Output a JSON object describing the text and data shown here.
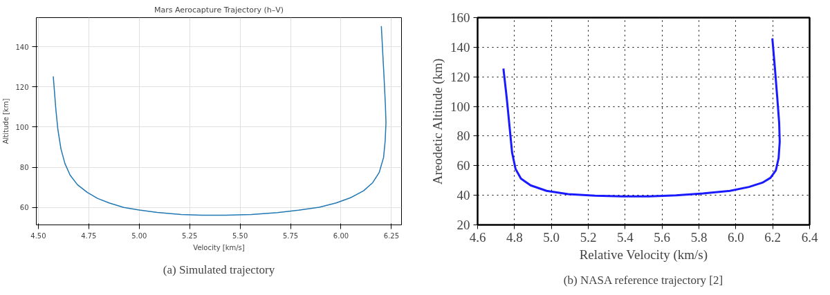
{
  "chart_data": [
    {
      "type": "line",
      "title": "Mars Aerocapture Trajectory (h–V)",
      "xlabel": "Velocity [km/s]",
      "ylabel": "Altitude [km]",
      "annotations": [
        "(a) Simulated trajectory"
      ],
      "xlim": [
        4.49,
        6.3
      ],
      "ylim": [
        51.3,
        154.5
      ],
      "xticks": [
        {
          "value": 4.5,
          "label": "4.50"
        },
        {
          "value": 4.75,
          "label": "4.75"
        },
        {
          "value": 5.0,
          "label": "5.00"
        },
        {
          "value": 5.25,
          "label": "5.25"
        },
        {
          "value": 5.5,
          "label": "5.50"
        },
        {
          "value": 5.75,
          "label": "5.75"
        },
        {
          "value": 6.0,
          "label": "6.00"
        },
        {
          "value": 6.25,
          "label": "6.25"
        }
      ],
      "yticks": [
        60,
        80,
        100,
        120,
        140
      ],
      "grid": true,
      "line_style": "solid",
      "marker": "none",
      "series": [
        {
          "color": "#1f77b4",
          "x": [
            4.574,
            4.587,
            4.597,
            4.612,
            4.632,
            4.658,
            4.694,
            4.742,
            4.793,
            4.851,
            4.923,
            5.0,
            5.09,
            5.207,
            5.31,
            5.427,
            5.556,
            5.685,
            5.789,
            5.892,
            5.976,
            6.047,
            6.112,
            6.157,
            6.189,
            6.211,
            6.219,
            6.223,
            6.22,
            6.213,
            6.2
          ],
          "values": [
            125.2,
            108.7,
            98.7,
            89.2,
            81.8,
            76.0,
            71.3,
            67.5,
            64.5,
            62.2,
            60.0,
            58.7,
            57.5,
            56.5,
            56.1,
            56.1,
            56.5,
            57.4,
            58.6,
            60.1,
            62.2,
            64.8,
            68.3,
            72.3,
            77.3,
            84.8,
            93.1,
            102.2,
            111.3,
            125.6,
            150.3
          ]
        }
      ]
    },
    {
      "type": "line",
      "xlabel": "Relative Velocity (km/s)",
      "ylabel": "Areodetic Altitude (km)",
      "annotations": [
        "(b) NASA reference trajectory [2]"
      ],
      "xlim": [
        4.6,
        6.4
      ],
      "ylim": [
        20,
        160
      ],
      "xticks": [
        4.6,
        4.8,
        {
          "value": 5.0,
          "label": "5.0"
        },
        5.2,
        5.4,
        5.6,
        5.8,
        {
          "value": 6.0,
          "label": "6.0"
        },
        6.2,
        6.4
      ],
      "yticks": [
        20,
        40,
        60,
        80,
        100,
        120,
        140,
        160
      ],
      "grid": true,
      "line_style": "solid",
      "marker": "none",
      "series": [
        {
          "color": "#1a1aff",
          "x": [
            4.74,
            4.758,
            4.774,
            4.787,
            4.806,
            4.835,
            4.887,
            4.974,
            5.091,
            5.237,
            5.384,
            5.53,
            5.676,
            5.822,
            5.968,
            6.071,
            6.144,
            6.188,
            6.217,
            6.232,
            6.238,
            6.235,
            6.225,
            6.212,
            6.198
          ],
          "values": [
            125.6,
            105.7,
            85.4,
            68.8,
            57.7,
            51.3,
            46.7,
            43.0,
            40.8,
            39.7,
            39.3,
            39.3,
            39.9,
            41.2,
            43.0,
            45.6,
            48.5,
            51.8,
            56.8,
            65.1,
            76.1,
            89.0,
            105.5,
            125.8,
            146.0
          ]
        }
      ]
    }
  ]
}
